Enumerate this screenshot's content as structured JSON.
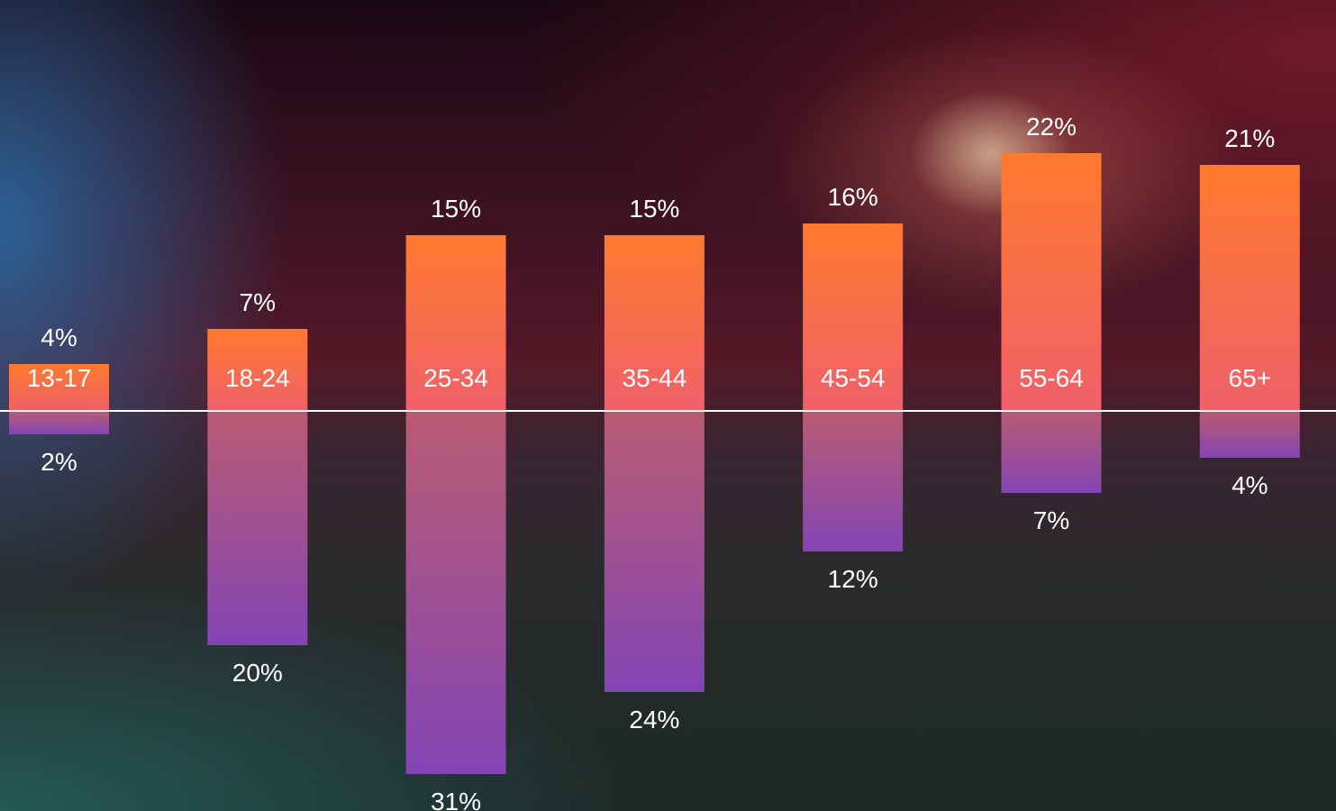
{
  "chart_data": {
    "type": "bar",
    "orientation": "diverging",
    "categories": [
      "13-17",
      "18-24",
      "25-34",
      "35-44",
      "45-54",
      "55-64",
      "65+"
    ],
    "series": [
      {
        "values": [
          4,
          7,
          15,
          15,
          16,
          22,
          21
        ],
        "color": "#ff7a2e"
      },
      {
        "values": [
          2,
          20,
          31,
          24,
          12,
          7,
          4
        ],
        "color": "#8a45b8"
      }
    ],
    "value_suffix": "%",
    "legend": false,
    "grid": false
  },
  "colors": {
    "upper_top": "#ff7a2e",
    "upper_bottom": "#f0606a",
    "lower_top": "#c4607a",
    "lower_bottom": "#8344b5",
    "axis": "#ffffff"
  }
}
